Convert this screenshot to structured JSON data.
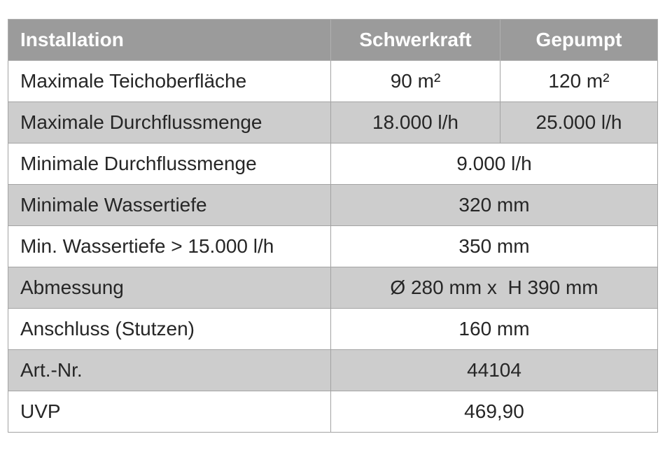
{
  "header": {
    "label": "Installation",
    "col1": "Schwerkraft",
    "col2": "Gepumpt"
  },
  "rows": [
    {
      "label": "Maximale Teichoberfläche",
      "v1": "90 m²",
      "v2": "120 m²"
    },
    {
      "label": "Maximale Durchflussmenge",
      "v1": "18.000 l/h",
      "v2": "25.000 l/h"
    },
    {
      "label": "Minimale Durchflussmenge",
      "v": "9.000 l/h"
    },
    {
      "label": "Minimale Wassertiefe",
      "v": "320 mm"
    },
    {
      "label": "Min. Wassertiefe > 15.000 l/h",
      "v": "350 mm"
    },
    {
      "label": "Abmessung",
      "v": "Ø 280 mm x  H 390 mm"
    },
    {
      "label": "Anschluss (Stutzen)",
      "v": "160 mm"
    },
    {
      "label": "Art.-Nr.",
      "v": "44104"
    },
    {
      "label": "UVP",
      "v": "469,90"
    }
  ],
  "colors": {
    "header_bg": "#9b9b9b",
    "alt_row_bg": "#cdcdcd",
    "border": "#a3a3a3"
  }
}
